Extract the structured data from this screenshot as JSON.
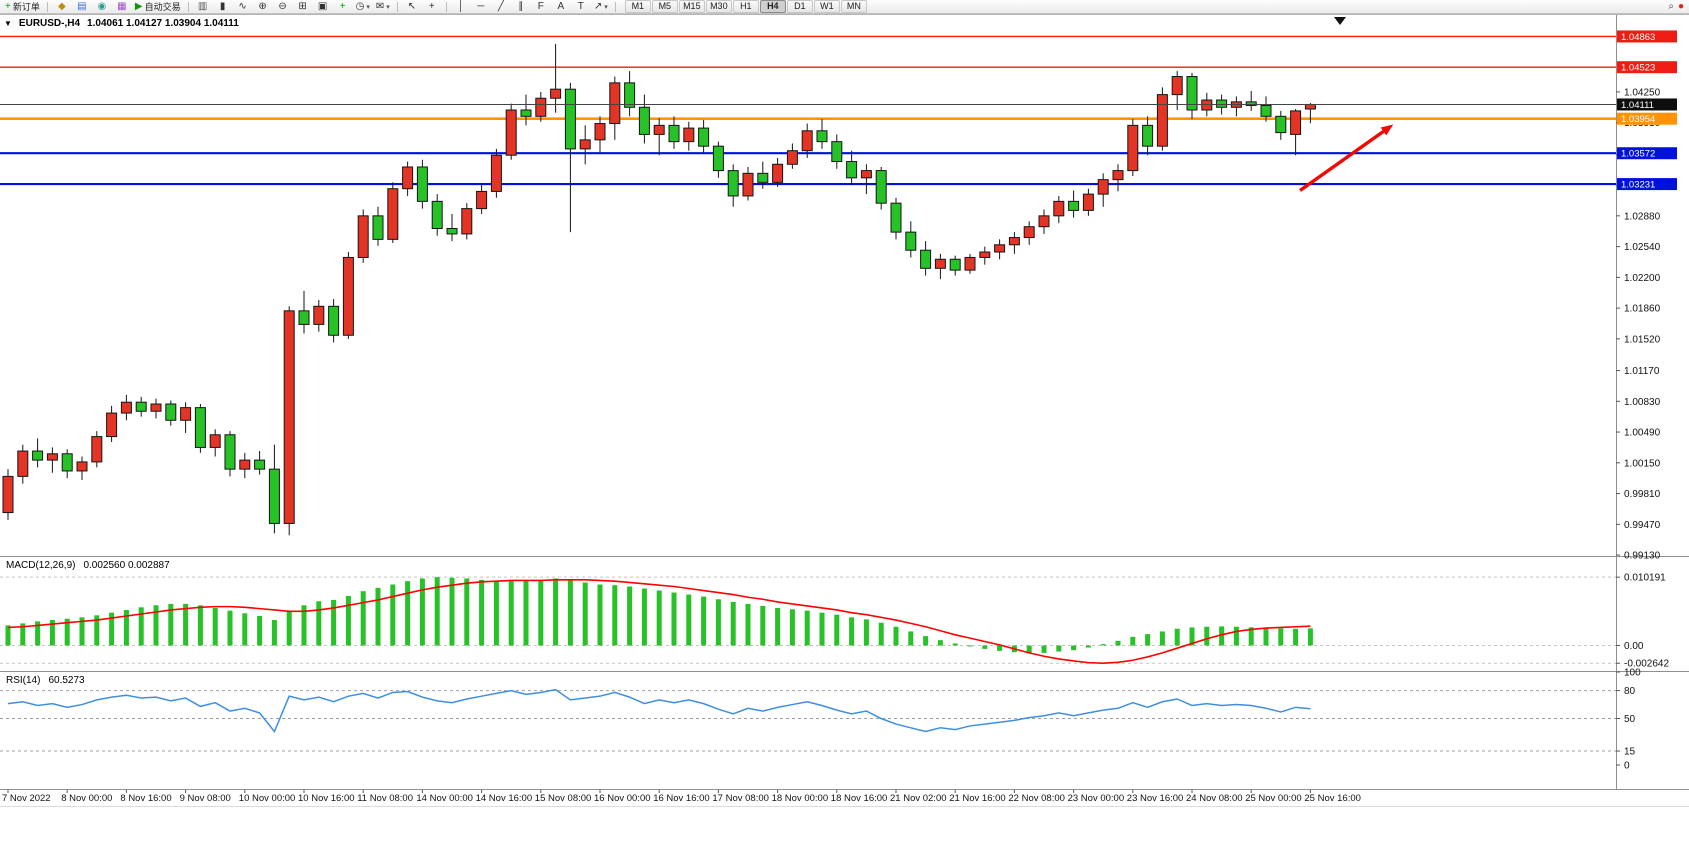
{
  "toolbar": {
    "items": [
      {
        "t": "btn",
        "name": "new-order-button",
        "glyph": "+",
        "color": "#0d9b0d",
        "label": "新订单"
      },
      {
        "t": "sep"
      },
      {
        "t": "btn",
        "name": "compass-icon",
        "glyph": "◆",
        "color": "#c08a18"
      },
      {
        "t": "btn",
        "name": "market-watch-icon",
        "glyph": "▤",
        "color": "#3a6fd8"
      },
      {
        "t": "btn",
        "name": "sound-icon",
        "glyph": "◉",
        "color": "#2a9d8f"
      },
      {
        "t": "btn",
        "name": "data-window-icon",
        "glyph": "▦",
        "color": "#a050c8"
      },
      {
        "t": "btn",
        "name": "autotrading-button",
        "glyph": "▶",
        "color": "#0a9a0a",
        "label": "自动交易"
      },
      {
        "t": "sep"
      },
      {
        "t": "btn",
        "name": "bar-chart-button",
        "glyph": "▥",
        "color": "#555555"
      },
      {
        "t": "btn",
        "name": "candlestick-chart-button",
        "glyph": "▮",
        "color": "#333333"
      },
      {
        "t": "btn",
        "name": "line-chart-button",
        "glyph": "∿",
        "color": "#333333"
      },
      {
        "t": "btn",
        "name": "zoom-in-button",
        "glyph": "⊕",
        "color": "#333333"
      },
      {
        "t": "btn",
        "name": "zoom-out-button",
        "glyph": "⊖",
        "color": "#333333"
      },
      {
        "t": "btn",
        "name": "tile-windows-button",
        "glyph": "⊞",
        "color": "#333333"
      },
      {
        "t": "btn",
        "name": "cascade-windows-button",
        "glyph": "▣",
        "color": "#333333"
      },
      {
        "t": "btn",
        "name": "indicators-button",
        "glyph": "+",
        "color": "#0a9a0a"
      },
      {
        "t": "btn",
        "name": "periods-button",
        "glyph": "◷",
        "color": "#333333",
        "caret": true
      },
      {
        "t": "btn",
        "name": "templates-button",
        "glyph": "✉",
        "color": "#333333",
        "caret": true
      },
      {
        "t": "sep"
      },
      {
        "t": "btn",
        "name": "cursor-button",
        "glyph": "↖",
        "color": "#333333"
      },
      {
        "t": "btn",
        "name": "crosshair-button",
        "glyph": "+",
        "color": "#333333"
      },
      {
        "t": "sep"
      },
      {
        "t": "btn",
        "name": "vertical-line-button",
        "glyph": "│",
        "color": "#333333"
      },
      {
        "t": "btn",
        "name": "horizontal-line-button",
        "glyph": "─",
        "color": "#333333"
      },
      {
        "t": "btn",
        "name": "trendline-button",
        "glyph": "╱",
        "color": "#333333"
      },
      {
        "t": "btn",
        "name": "channel-button",
        "glyph": "∥",
        "color": "#333333"
      },
      {
        "t": "btn",
        "name": "fibonacci-button",
        "glyph": "F",
        "color": "#333333"
      },
      {
        "t": "btn",
        "name": "text-button",
        "glyph": "A",
        "color": "#333333"
      },
      {
        "t": "btn",
        "name": "label-button",
        "glyph": "T",
        "color": "#333333"
      },
      {
        "t": "btn",
        "name": "arrows-button",
        "glyph": "↗",
        "color": "#333333",
        "caret": true
      },
      {
        "t": "sep"
      }
    ],
    "timeframes": {
      "items": [
        "M1",
        "M5",
        "M15",
        "M30",
        "H1",
        "H4",
        "D1",
        "W1",
        "MN"
      ],
      "active": "H4"
    },
    "right_icons": [
      {
        "name": "search-icon",
        "glyph": "⌕",
        "color": "#444444"
      },
      {
        "name": "community-badge-icon",
        "glyph": "●",
        "color": "#dd2211"
      }
    ]
  },
  "chart": {
    "title": {
      "symbol": "EURUSD-,H4",
      "ohlc": "1.04061 1.04127 1.03904 1.04111"
    },
    "one_click_toggle": "▼"
  },
  "colors": {
    "bull": "#e33426",
    "bear": "#27c227",
    "wick": "#151515",
    "macd_hist": "#27c227",
    "macd_signal": "#ff0000",
    "rsi_line": "#3e8fe0",
    "resistance_line": "#ee1c12",
    "support_line": "#0011dd",
    "orange_line": "#ff9400",
    "bid_line": "#444444",
    "bid_box": "#0d0d0d",
    "arrow": "#f20800"
  },
  "chart_data": {
    "type": "candlestick",
    "symbol": "EURUSD-",
    "timeframe": "H4",
    "current_bar": {
      "open": 1.04061,
      "high": 1.04127,
      "low": 1.03904,
      "close": 1.04111
    },
    "price_axis_ticks": [
      "1.04250",
      "1.03910",
      "1.03560",
      "1.03220",
      "1.02880",
      "1.02540",
      "1.02200",
      "1.01860",
      "1.01520",
      "1.01170",
      "1.00830",
      "1.00490",
      "1.00150",
      "0.99810",
      "0.99470",
      "0.99130"
    ],
    "time_axis": {
      "label_every": 4,
      "labels": [
        "7 Nov 2022",
        "8 Nov 00:00",
        "8 Nov 16:00",
        "9 Nov 08:00",
        "10 Nov 00:00",
        "10 Nov 16:00",
        "11 Nov 08:00",
        "14 Nov 00:00",
        "14 Nov 16:00",
        "15 Nov 08:00",
        "16 Nov 00:00",
        "16 Nov 16:00",
        "17 Nov 08:00",
        "18 Nov 00:00",
        "18 Nov 16:00",
        "21 Nov 02:00",
        "21 Nov 16:00",
        "22 Nov 08:00",
        "23 Nov 00:00",
        "23 Nov 16:00",
        "24 Nov 08:00",
        "25 Nov 00:00",
        "25 Nov 16:00"
      ]
    },
    "price_lines": [
      {
        "name": "resistance-line-1",
        "price": 1.04863,
        "label": "1.04863",
        "color": "#ee1c12",
        "width": 1.4
      },
      {
        "name": "resistance-line-2",
        "price": 1.04523,
        "label": "1.04523",
        "color": "#ee1c12",
        "width": 1.4
      },
      {
        "name": "orange-level-line",
        "price": 1.03954,
        "label": "1.03954",
        "color": "#ff9400",
        "width": 2.6
      },
      {
        "name": "support-line-1",
        "price": 1.03572,
        "label": "1.03572",
        "color": "#0011dd",
        "width": 2.1
      },
      {
        "name": "support-line-2",
        "price": 1.03231,
        "label": "1.03231",
        "color": "#0011dd",
        "width": 2.1
      }
    ],
    "bid_line": {
      "price": 1.04111,
      "label": "1.04111"
    },
    "arrow_annotation": {
      "from_index": 87.3,
      "from_price": 1.0316,
      "to_index": 93.6,
      "to_price": 1.0389
    },
    "shift_marker_index": 90,
    "candles": [
      [
        0.996,
        1.0008,
        0.9952,
        1.0
      ],
      [
        1.0,
        1.0035,
        0.9992,
        1.0028
      ],
      [
        1.0028,
        1.0042,
        1.001,
        1.0018
      ],
      [
        1.0018,
        1.0032,
        1.0004,
        1.0025
      ],
      [
        1.0025,
        1.003,
        0.9998,
        1.0006
      ],
      [
        1.0006,
        1.0022,
        0.9996,
        1.0016
      ],
      [
        1.0016,
        1.005,
        1.001,
        1.0044
      ],
      [
        1.0044,
        1.0078,
        1.0038,
        1.007
      ],
      [
        1.007,
        1.009,
        1.0062,
        1.0082
      ],
      [
        1.0082,
        1.0088,
        1.0066,
        1.0072
      ],
      [
        1.0072,
        1.0086,
        1.0064,
        1.008
      ],
      [
        1.008,
        1.0084,
        1.0056,
        1.0062
      ],
      [
        1.0062,
        1.0082,
        1.0048,
        1.0076
      ],
      [
        1.0076,
        1.008,
        1.0026,
        1.0032
      ],
      [
        1.0032,
        1.0052,
        1.0022,
        1.0046
      ],
      [
        1.0046,
        1.005,
        1.0,
        1.0008
      ],
      [
        1.0008,
        1.0026,
        0.9998,
        1.0018
      ],
      [
        1.0018,
        1.0028,
        1.0002,
        1.0008
      ],
      [
        1.0008,
        1.0035,
        0.9937,
        0.9948
      ],
      [
        0.9948,
        1.0188,
        0.9935,
        1.0183
      ],
      [
        1.0183,
        1.0205,
        1.0158,
        1.0168
      ],
      [
        1.0168,
        1.0195,
        1.016,
        1.0188
      ],
      [
        1.0188,
        1.0196,
        1.0148,
        1.0156
      ],
      [
        1.0156,
        1.0248,
        1.0152,
        1.0242
      ],
      [
        1.0242,
        1.0295,
        1.0236,
        1.0288
      ],
      [
        1.0288,
        1.0298,
        1.0255,
        1.0262
      ],
      [
        1.0262,
        1.0325,
        1.0258,
        1.0318
      ],
      [
        1.0318,
        1.0348,
        1.031,
        1.0342
      ],
      [
        1.0342,
        1.035,
        1.0296,
        1.0304
      ],
      [
        1.0304,
        1.0312,
        1.0266,
        1.0274
      ],
      [
        1.0274,
        1.029,
        1.026,
        1.0268
      ],
      [
        1.0268,
        1.0302,
        1.0262,
        1.0296
      ],
      [
        1.0296,
        1.0322,
        1.029,
        1.0315
      ],
      [
        1.0315,
        1.0362,
        1.0308,
        1.0355
      ],
      [
        1.0355,
        1.0412,
        1.035,
        1.0405
      ],
      [
        1.0405,
        1.0422,
        1.0388,
        1.0398
      ],
      [
        1.0398,
        1.0425,
        1.0392,
        1.0418
      ],
      [
        1.0418,
        1.0478,
        1.0402,
        1.0428
      ],
      [
        1.0428,
        1.0435,
        1.027,
        1.0362
      ],
      [
        1.0362,
        1.0388,
        1.0345,
        1.0372
      ],
      [
        1.0372,
        1.0398,
        1.0358,
        1.039
      ],
      [
        1.039,
        1.0442,
        1.0372,
        1.0435
      ],
      [
        1.0435,
        1.0448,
        1.0398,
        1.0408
      ],
      [
        1.0408,
        1.0422,
        1.0368,
        1.0378
      ],
      [
        1.0378,
        1.0396,
        1.0355,
        1.0388
      ],
      [
        1.0388,
        1.0398,
        1.0362,
        1.037
      ],
      [
        1.037,
        1.0392,
        1.036,
        1.0385
      ],
      [
        1.0385,
        1.0394,
        1.0358,
        1.0365
      ],
      [
        1.0365,
        1.037,
        1.033,
        1.0338
      ],
      [
        1.0338,
        1.0345,
        1.0298,
        1.031
      ],
      [
        1.031,
        1.0342,
        1.0305,
        1.0335
      ],
      [
        1.0335,
        1.0348,
        1.0318,
        1.0325
      ],
      [
        1.0325,
        1.0352,
        1.032,
        1.0345
      ],
      [
        1.0345,
        1.0368,
        1.034,
        1.036
      ],
      [
        1.036,
        1.039,
        1.0352,
        1.0382
      ],
      [
        1.0382,
        1.0395,
        1.0362,
        1.037
      ],
      [
        1.037,
        1.0378,
        1.034,
        1.0348
      ],
      [
        1.0348,
        1.036,
        1.0322,
        1.033
      ],
      [
        1.033,
        1.0345,
        1.0312,
        1.0338
      ],
      [
        1.0338,
        1.0342,
        1.0295,
        1.0302
      ],
      [
        1.0302,
        1.0308,
        1.0262,
        1.027
      ],
      [
        1.027,
        1.0282,
        1.0242,
        1.025
      ],
      [
        1.025,
        1.026,
        1.0222,
        1.023
      ],
      [
        1.023,
        1.0246,
        1.0218,
        1.024
      ],
      [
        1.024,
        1.0244,
        1.0222,
        1.0228
      ],
      [
        1.0228,
        1.0246,
        1.0224,
        1.0242
      ],
      [
        1.0242,
        1.0254,
        1.0234,
        1.0248
      ],
      [
        1.0248,
        1.0262,
        1.024,
        1.0256
      ],
      [
        1.0256,
        1.027,
        1.0246,
        1.0264
      ],
      [
        1.0264,
        1.0282,
        1.0256,
        1.0276
      ],
      [
        1.0276,
        1.0295,
        1.0268,
        1.0288
      ],
      [
        1.0288,
        1.031,
        1.028,
        1.0304
      ],
      [
        1.0304,
        1.0316,
        1.0286,
        1.0294
      ],
      [
        1.0294,
        1.0318,
        1.0288,
        1.0312
      ],
      [
        1.0312,
        1.0335,
        1.0298,
        1.0328
      ],
      [
        1.0328,
        1.0345,
        1.0315,
        1.0338
      ],
      [
        1.0338,
        1.0395,
        1.0332,
        1.0388
      ],
      [
        1.0388,
        1.0398,
        1.0355,
        1.0365
      ],
      [
        1.0365,
        1.043,
        1.036,
        1.0422
      ],
      [
        1.0422,
        1.0448,
        1.0405,
        1.0442
      ],
      [
        1.0442,
        1.0446,
        1.0395,
        1.0405
      ],
      [
        1.0405,
        1.0424,
        1.0398,
        1.0416
      ],
      [
        1.0416,
        1.0422,
        1.04,
        1.0408
      ],
      [
        1.0408,
        1.042,
        1.0398,
        1.0414
      ],
      [
        1.0414,
        1.0426,
        1.0404,
        1.041
      ],
      [
        1.041,
        1.042,
        1.0392,
        1.0398
      ],
      [
        1.0398,
        1.0404,
        1.0372,
        1.038
      ],
      [
        1.0378,
        1.0406,
        1.0355,
        1.0404
      ],
      [
        1.04061,
        1.04127,
        1.03904,
        1.04111
      ]
    ],
    "macd": {
      "label": "MACD(12,26,9)",
      "values_text": "0.002560 0.002887",
      "axis_labels": [
        "0.010191",
        "0.00",
        "-0.002642"
      ],
      "main": [
        0.003,
        0.0033,
        0.0036,
        0.0038,
        0.004,
        0.0042,
        0.0045,
        0.0049,
        0.0053,
        0.0057,
        0.006,
        0.0062,
        0.0062,
        0.006,
        0.0056,
        0.0052,
        0.0048,
        0.0044,
        0.0038,
        0.0052,
        0.006,
        0.0066,
        0.0068,
        0.0074,
        0.0081,
        0.0086,
        0.0091,
        0.0096,
        0.01,
        0.010191,
        0.0101,
        0.01,
        0.0098,
        0.0097,
        0.0098,
        0.0097,
        0.0098,
        0.01,
        0.0097,
        0.0094,
        0.0091,
        0.009,
        0.0088,
        0.0085,
        0.0082,
        0.0079,
        0.0076,
        0.0073,
        0.0069,
        0.0065,
        0.0062,
        0.0059,
        0.0056,
        0.0054,
        0.0052,
        0.0049,
        0.0046,
        0.0042,
        0.0039,
        0.0034,
        0.0028,
        0.0021,
        0.0014,
        0.0008,
        0.0003,
        -0.0001,
        -0.0005,
        -0.0008,
        -0.001,
        -0.0011,
        -0.0011,
        -0.0009,
        -0.0007,
        -0.0003,
        0.0002,
        0.0007,
        0.0013,
        0.0017,
        0.0021,
        0.0025,
        0.0027,
        0.0028,
        0.00285,
        0.0028,
        0.00272,
        0.00264,
        0.00256,
        0.0025,
        0.00256
      ],
      "signal": [
        0.0027,
        0.0028,
        0.003,
        0.0032,
        0.0034,
        0.0036,
        0.0038,
        0.0041,
        0.0044,
        0.0047,
        0.005,
        0.0053,
        0.0055,
        0.0057,
        0.0058,
        0.0058,
        0.0057,
        0.0055,
        0.0053,
        0.0051,
        0.0051,
        0.0053,
        0.0056,
        0.006,
        0.0064,
        0.0068,
        0.0073,
        0.0078,
        0.0083,
        0.0087,
        0.009,
        0.0093,
        0.0095,
        0.0096,
        0.0097,
        0.0097,
        0.0097,
        0.0098,
        0.0098,
        0.0098,
        0.0097,
        0.0096,
        0.0094,
        0.0092,
        0.009,
        0.0088,
        0.0085,
        0.0082,
        0.0079,
        0.0076,
        0.0072,
        0.0069,
        0.0065,
        0.0062,
        0.0059,
        0.0056,
        0.0053,
        0.0049,
        0.0046,
        0.0042,
        0.0038,
        0.0033,
        0.0028,
        0.0022,
        0.0016,
        0.0011,
        0.0006,
        0.0001,
        -0.0005,
        -0.0011,
        -0.0016,
        -0.002,
        -0.0023,
        -0.00255,
        -0.00264,
        -0.0025,
        -0.0022,
        -0.0017,
        -0.0011,
        -0.0004,
        0.0003,
        0.001,
        0.0016,
        0.0021,
        0.0024,
        0.0026,
        0.0027,
        0.0028,
        0.002887
      ]
    },
    "rsi": {
      "label": "RSI(14)",
      "value_text": "60.5273",
      "levels": [
        80,
        50,
        15
      ],
      "axis_labels": [
        "100",
        "80",
        "50",
        "15",
        "0"
      ],
      "values": [
        66,
        68,
        64,
        66,
        62,
        65,
        70,
        73,
        75,
        72,
        73,
        69,
        72,
        63,
        67,
        58,
        61,
        56,
        36,
        74,
        70,
        73,
        68,
        74,
        77,
        72,
        78,
        79,
        73,
        69,
        67,
        71,
        74,
        77,
        80,
        76,
        78,
        81,
        70,
        72,
        74,
        78,
        73,
        66,
        70,
        67,
        70,
        66,
        60,
        55,
        61,
        58,
        62,
        65,
        68,
        64,
        59,
        55,
        58,
        50,
        44,
        40,
        36,
        40,
        38,
        42,
        44,
        46,
        48,
        51,
        53,
        56,
        53,
        56,
        59,
        61,
        67,
        62,
        68,
        71,
        64,
        66,
        64,
        65,
        64,
        61,
        57,
        62,
        60.5273
      ]
    }
  }
}
